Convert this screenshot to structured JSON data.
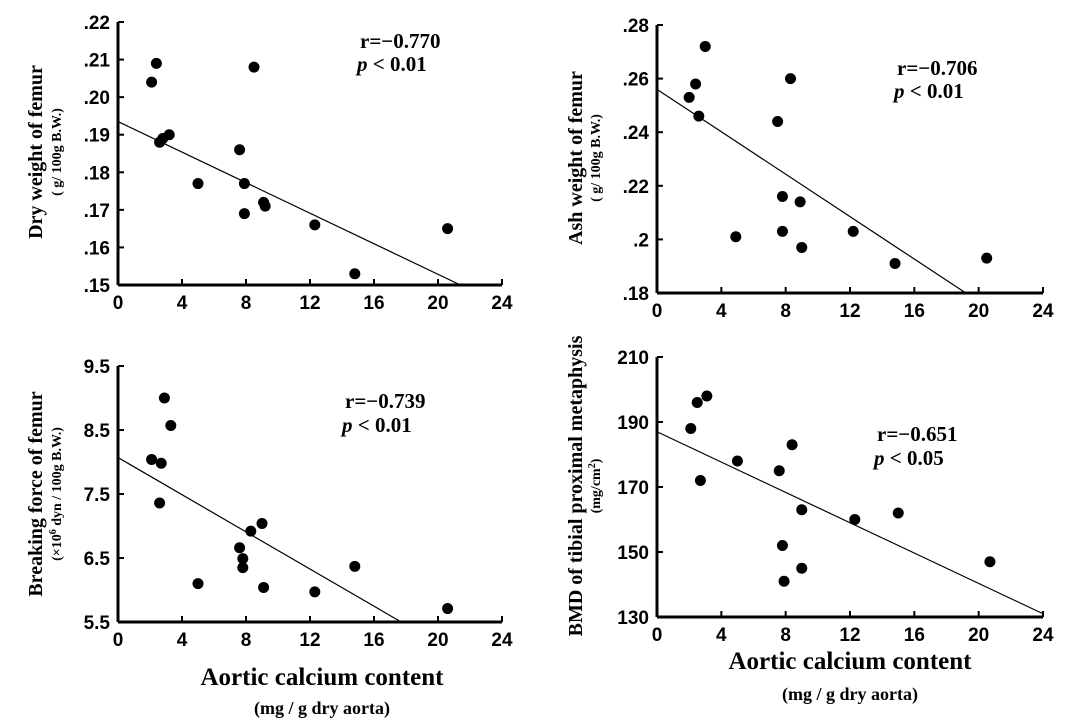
{
  "x_axis": {
    "label": "Aortic calcium content",
    "unit": "(mg / g dry aorta)"
  },
  "chart_data": [
    {
      "id": "dry",
      "type": "scatter",
      "ylabel": "Dry weight of femur",
      "ylabel_unit": "( g/ 100g B.W.)",
      "xlim": [
        0,
        24
      ],
      "ylim": [
        0.15,
        0.22
      ],
      "xticks": [
        "0",
        "4",
        "8",
        "12",
        "16",
        "20",
        "24"
      ],
      "yticks": [
        ".15",
        ".16",
        ".17",
        ".18",
        ".19",
        ".20",
        ".21",
        ".22"
      ],
      "r_text": "r=−0.770",
      "p_italic": "p",
      "p_rest": " < 0.01",
      "x": [
        2.1,
        2.4,
        2.6,
        2.8,
        3.2,
        5.0,
        7.6,
        7.9,
        7.9,
        8.5,
        9.1,
        9.2,
        12.3,
        14.8,
        20.6
      ],
      "y": [
        0.204,
        0.209,
        0.188,
        0.189,
        0.19,
        0.177,
        0.186,
        0.177,
        0.169,
        0.208,
        0.172,
        0.171,
        0.166,
        0.153,
        0.165
      ],
      "regression": {
        "x0": 0,
        "y0": 0.1935,
        "x1": 21.4,
        "y1": 0.15
      }
    },
    {
      "id": "ash",
      "type": "scatter",
      "ylabel": "Ash weight of femur",
      "ylabel_unit": "( g/ 100g B.W.)",
      "xlim": [
        0,
        24
      ],
      "ylim": [
        0.18,
        0.28
      ],
      "xticks": [
        "0",
        "4",
        "8",
        "12",
        "16",
        "20",
        "24"
      ],
      "yticks": [
        ".18",
        ".2",
        ".22",
        ".24",
        ".26",
        ".28"
      ],
      "r_text": "r=−0.706",
      "p_italic": "p",
      "p_rest": " < 0.01",
      "x": [
        2.0,
        2.4,
        2.6,
        3.0,
        4.9,
        7.5,
        7.8,
        7.8,
        8.3,
        8.9,
        9.0,
        12.2,
        14.8,
        20.5
      ],
      "y": [
        0.253,
        0.258,
        0.246,
        0.272,
        0.201,
        0.244,
        0.216,
        0.203,
        0.26,
        0.214,
        0.197,
        0.203,
        0.191,
        0.193
      ],
      "regression": {
        "x0": 0,
        "y0": 0.256,
        "x1": 19.2,
        "y1": 0.18
      }
    },
    {
      "id": "break",
      "type": "scatter",
      "ylabel": "Breaking force of femur",
      "ylabel_unit_pre": "(×10",
      "ylabel_unit_sup": "6",
      "ylabel_unit_post": " dyn / 100g B.W.)",
      "xlim": [
        0,
        24
      ],
      "ylim": [
        5.5,
        9.5
      ],
      "xticks": [
        "0",
        "4",
        "8",
        "12",
        "16",
        "20",
        "24"
      ],
      "yticks": [
        "5.5",
        "6.5",
        "7.5",
        "8.5",
        "9.5"
      ],
      "r_text": "r=−0.739",
      "p_italic": "p",
      "p_rest": " < 0.01",
      "x": [
        2.1,
        2.6,
        2.7,
        2.9,
        3.3,
        5.0,
        7.6,
        7.8,
        7.8,
        8.3,
        9.0,
        9.1,
        12.3,
        14.8,
        20.6
      ],
      "y": [
        8.04,
        7.36,
        7.98,
        9.0,
        8.57,
        6.1,
        6.66,
        6.49,
        6.35,
        6.92,
        7.04,
        6.04,
        5.97,
        6.37,
        5.71
      ],
      "regression": {
        "x0": 0,
        "y0": 8.07,
        "x1": 17.7,
        "y1": 5.5
      }
    },
    {
      "id": "bmd",
      "type": "scatter",
      "ylabel": "BMD of tibial proximal metaphysis",
      "ylabel_unit_pre": "(mg/cm",
      "ylabel_unit_sup": "2",
      "ylabel_unit_post": ")",
      "xlim": [
        0,
        24
      ],
      "ylim": [
        130,
        210
      ],
      "xticks": [
        "0",
        "4",
        "8",
        "12",
        "16",
        "20",
        "24"
      ],
      "yticks": [
        "130",
        "150",
        "170",
        "190",
        "210"
      ],
      "r_text": "r=−0.651",
      "p_italic": "p",
      "p_rest": " < 0.05",
      "x": [
        2.1,
        2.5,
        2.7,
        3.1,
        5.0,
        7.6,
        7.8,
        7.9,
        8.4,
        9.0,
        9.0,
        12.3,
        15.0,
        20.7
      ],
      "y": [
        188,
        196,
        172,
        198,
        178,
        175,
        152,
        141,
        183,
        163,
        145,
        160,
        162,
        147
      ],
      "regression": {
        "x0": 0,
        "y0": 187,
        "x1": 24,
        "y1": 131
      }
    }
  ]
}
